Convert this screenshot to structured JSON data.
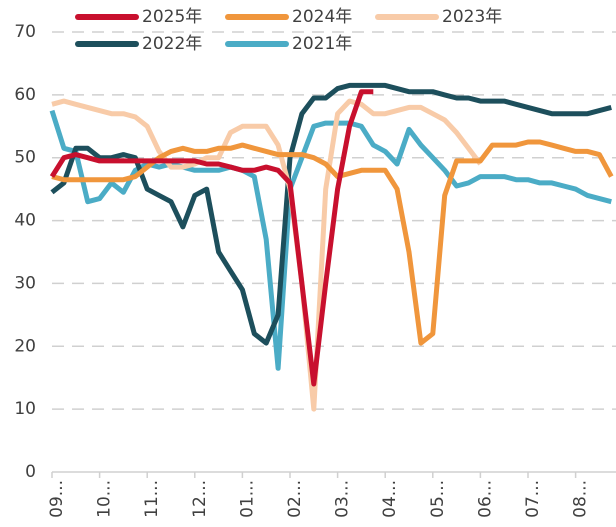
{
  "chart_data": {
    "type": "line",
    "categories": [
      "09...",
      null,
      null,
      null,
      "10...",
      null,
      null,
      null,
      "11...",
      null,
      null,
      null,
      "12...",
      null,
      null,
      null,
      "01...",
      null,
      null,
      null,
      "02...",
      null,
      null,
      null,
      "03...",
      null,
      null,
      null,
      "04...",
      null,
      null,
      null,
      "05...",
      null,
      null,
      null,
      "06...",
      null,
      null,
      null,
      "07...",
      null,
      null,
      null,
      "08...",
      null,
      null,
      null
    ],
    "series": [
      {
        "name": "2025年",
        "color": "#c8102e",
        "values": [
          47,
          50,
          50.5,
          50,
          49.5,
          49.5,
          49.5,
          49.5,
          49.5,
          49.5,
          49.5,
          49.5,
          49.5,
          49,
          49,
          48.5,
          48,
          48,
          48.5,
          48,
          46,
          30,
          14,
          30,
          45,
          55,
          60.5,
          60.5,
          null,
          null,
          null,
          null,
          null,
          null,
          null,
          null,
          null,
          null,
          null,
          null,
          null,
          null,
          null,
          null,
          null,
          null,
          null,
          null
        ]
      },
      {
        "name": "2024年",
        "color": "#f0963c",
        "values": [
          47,
          46.5,
          46.5,
          46.5,
          46.5,
          46.5,
          46.5,
          47,
          48.5,
          50,
          51,
          51.5,
          51,
          51,
          51.5,
          51.5,
          52,
          51.5,
          51,
          50.5,
          50.5,
          50.5,
          50,
          49,
          47,
          47.5,
          48,
          48,
          48,
          45,
          35,
          20.5,
          22,
          44,
          49.5,
          49.5,
          49.5,
          52,
          52,
          52,
          52.5,
          52.5,
          52,
          51.5,
          51,
          51,
          50.5,
          47
        ]
      },
      {
        "name": "2023年",
        "color": "#f8cba8",
        "values": [
          58.5,
          59,
          58.5,
          58,
          57.5,
          57,
          57,
          56.5,
          55,
          51,
          48.5,
          48.5,
          49,
          50,
          50,
          54,
          55,
          55,
          55,
          52,
          45,
          30,
          10,
          45,
          57,
          59,
          58.5,
          57,
          57,
          57.5,
          58,
          58,
          57,
          56,
          54,
          51.5,
          49,
          null,
          null,
          null,
          null,
          null,
          null,
          null,
          null,
          null,
          null,
          null
        ]
      },
      {
        "name": "2022年",
        "color": "#1d4f5c",
        "values": [
          44.5,
          46,
          51.5,
          51.5,
          50,
          50,
          50.5,
          50,
          45,
          44,
          43,
          39,
          44,
          45,
          35,
          32,
          29,
          22,
          20.5,
          25,
          50,
          57,
          59.5,
          59.5,
          61,
          61.5,
          61.5,
          61.5,
          61.5,
          61,
          60.5,
          60.5,
          60.5,
          60,
          59.5,
          59.5,
          59,
          59,
          59,
          58.5,
          58,
          57.5,
          57,
          57,
          57,
          57,
          57.5,
          58
        ]
      },
      {
        "name": "2021年",
        "color": "#4bacc6",
        "values": [
          57.5,
          51.5,
          51,
          43,
          43.5,
          46,
          44.5,
          48,
          49,
          48.5,
          49,
          48.5,
          48,
          48,
          48,
          48.5,
          48,
          47,
          37,
          16.5,
          45,
          50,
          55,
          55.5,
          55.5,
          55.5,
          55,
          52,
          51,
          49,
          54.5,
          52,
          50,
          48,
          45.5,
          46,
          47,
          47,
          47,
          46.5,
          46.5,
          46,
          46,
          45.5,
          45,
          44,
          43.5,
          43
        ]
      }
    ],
    "ylim": [
      0,
      70
    ],
    "yticks": [
      0,
      10,
      20,
      30,
      40,
      50,
      60,
      70
    ],
    "grid": true
  }
}
